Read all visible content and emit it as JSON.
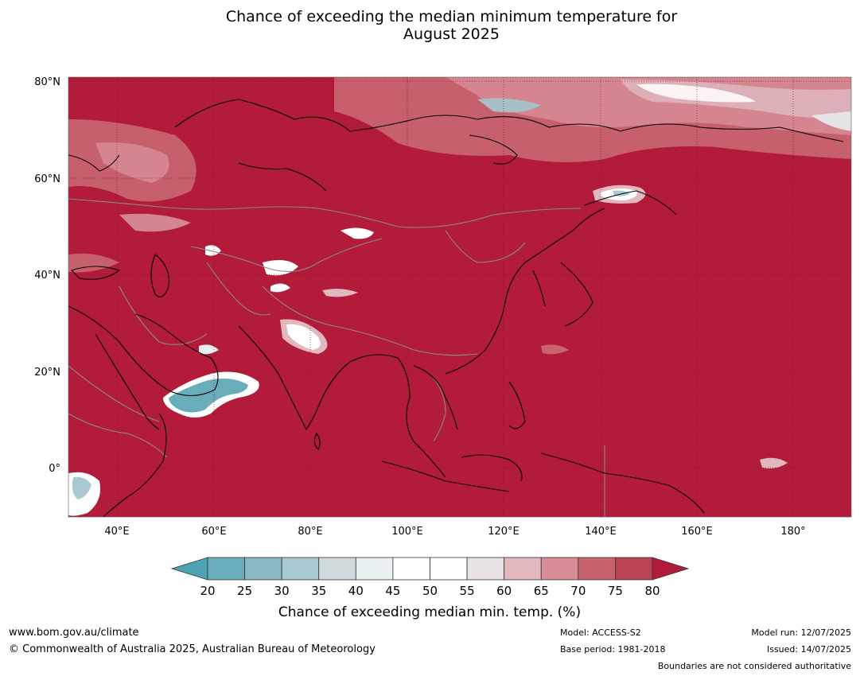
{
  "title": {
    "line1": "Chance of exceeding the median minimum temperature for",
    "line2": "August 2025"
  },
  "map": {
    "lat_labels": [
      "80°N",
      "60°N",
      "40°N",
      "20°N",
      "0°"
    ],
    "lon_labels": [
      "40°E",
      "60°E",
      "80°E",
      "100°E",
      "120°E",
      "140°E",
      "160°E",
      "180°"
    ],
    "extent": {
      "lon_min": 30,
      "lon_max": 190,
      "lat_min": -10,
      "lat_max": 80
    },
    "dominant_colour": "#b21c3a"
  },
  "colorbar": {
    "ticks": [
      "20",
      "25",
      "30",
      "35",
      "40",
      "45",
      "50",
      "55",
      "60",
      "65",
      "70",
      "75",
      "80"
    ],
    "colors": [
      "#6aadba",
      "#8ab9c5",
      "#a9c8d0",
      "#d1d9dc",
      "#e8eff1",
      "#ffffff",
      "#ffffff",
      "#e9e3e5",
      "#e0b8be",
      "#d78b95",
      "#c8646f",
      "#bb4352"
    ],
    "under_color": "#4ba3b4",
    "over_color": "#b21c3a",
    "label": "Chance of exceeding median min. temp. (%)"
  },
  "footer": {
    "website": "www.bom.gov.au/climate",
    "copyright": "© Commonwealth of Australia 2025, Australian Bureau of Meteorology",
    "model": "Model: ACCESS-S2",
    "base_period": "Base period: 1981-2018",
    "model_run": "Model run: 12/07/2025",
    "issued": "Issued: 14/07/2025",
    "disclaimer": "Boundaries are not considered authoritative"
  }
}
